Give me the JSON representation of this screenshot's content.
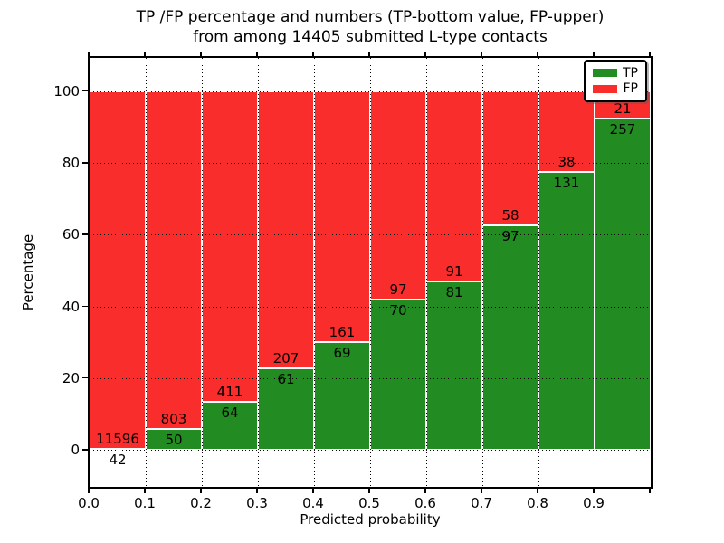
{
  "title": {
    "line1": "TP /FP percentage and numbers (TP-bottom value, FP-upper)",
    "line2": "from among 14405 submitted L-type contacts"
  },
  "axes": {
    "xlabel": "Predicted probability",
    "ylabel": "Percentage",
    "x_ticks": [
      "0.0",
      "0.1",
      "0.2",
      "0.3",
      "0.4",
      "0.5",
      "0.6",
      "0.7",
      "0.8",
      "0.9"
    ],
    "y_ticks": [
      "0",
      "20",
      "40",
      "60",
      "80",
      "100"
    ],
    "y_tick_values": [
      0,
      20,
      40,
      60,
      80,
      100
    ],
    "xlim": [
      0.0,
      1.0
    ],
    "ylim": [
      -10.3,
      109.3
    ],
    "grid": "dotted-black"
  },
  "legend": {
    "position": "upper-right",
    "items": [
      {
        "label": "TP",
        "color": "#228B22"
      },
      {
        "label": "FP",
        "color": "#FA2D2D"
      }
    ]
  },
  "colors": {
    "tp": "#228B22",
    "fp": "#FA2D2D",
    "background": "#FFFFFF",
    "grid": "#000000",
    "bar_edge": "#FFFFFF"
  },
  "chart_data": {
    "type": "bar",
    "stacked": true,
    "normalized_to_percent": true,
    "title": "TP /FP percentage and numbers (TP-bottom value, FP-upper) from among 14405 submitted L-type contacts",
    "xlabel": "Predicted probability",
    "ylabel": "Percentage",
    "bin_left_edges": [
      0.0,
      0.1,
      0.2,
      0.3,
      0.4,
      0.5,
      0.6,
      0.7,
      0.8,
      0.9
    ],
    "bin_width": 0.1,
    "series": [
      {
        "name": "TP",
        "counts": [
          42,
          50,
          64,
          61,
          69,
          70,
          81,
          97,
          131,
          257
        ]
      },
      {
        "name": "FP",
        "counts": [
          11596,
          803,
          411,
          207,
          161,
          97,
          91,
          58,
          38,
          21
        ]
      }
    ],
    "tp_percent": [
      0.36,
      5.86,
      13.47,
      22.76,
      30.0,
      41.92,
      47.09,
      62.58,
      77.51,
      92.45
    ],
    "total_contacts": 14405
  }
}
